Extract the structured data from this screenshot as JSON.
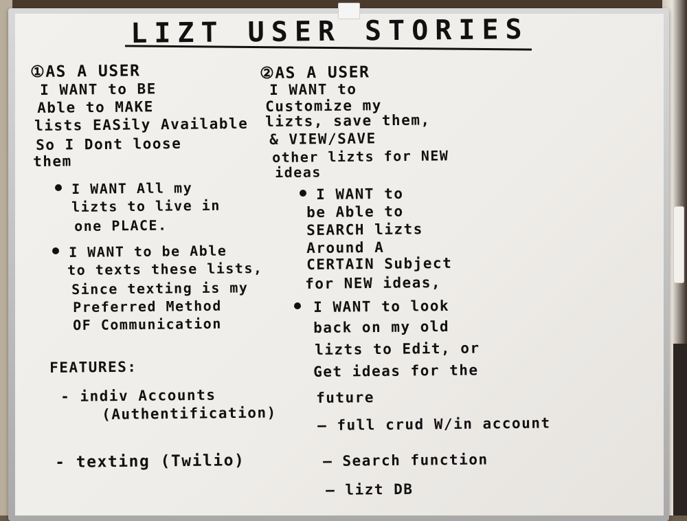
{
  "title": "LIZT USER STORIES",
  "story1": {
    "heading": "①AS A USER",
    "lines": [
      "I WANT to BE",
      "Able to MAKE",
      "lists EASily Available",
      "So I Dont loose",
      "them"
    ],
    "bullets": [
      {
        "lines": [
          "I WANT All my",
          "lizts to live in",
          "one PLACE."
        ]
      },
      {
        "lines": [
          "I WANT to be Able",
          "to texts these lists,",
          "Since texting is my",
          "Preferred Method",
          "OF Communication"
        ]
      }
    ]
  },
  "features": {
    "heading": "FEATURES:",
    "items": [
      "- indiv Accounts",
      "(Authentification)",
      "- texting (Twilio)"
    ]
  },
  "story2": {
    "heading": "②AS A USER",
    "lines": [
      "I WANT to",
      "Customize my",
      "lizts, save them,",
      "& VIEW/SAVE",
      "other lizts for NEW",
      "ideas"
    ],
    "bullets": [
      {
        "lines": [
          "I WANT to",
          "be Able to",
          "SEARCH lizts",
          "Around A",
          "CERTAIN Subject",
          "for NEW ideas,"
        ]
      },
      {
        "lines": [
          "I WANT to look",
          "back on my old",
          "lizts to Edit, or",
          "Get ideas for the",
          "future"
        ]
      }
    ],
    "features": [
      "— full crud W/in account",
      "— Search function",
      "— lizt DB"
    ]
  }
}
